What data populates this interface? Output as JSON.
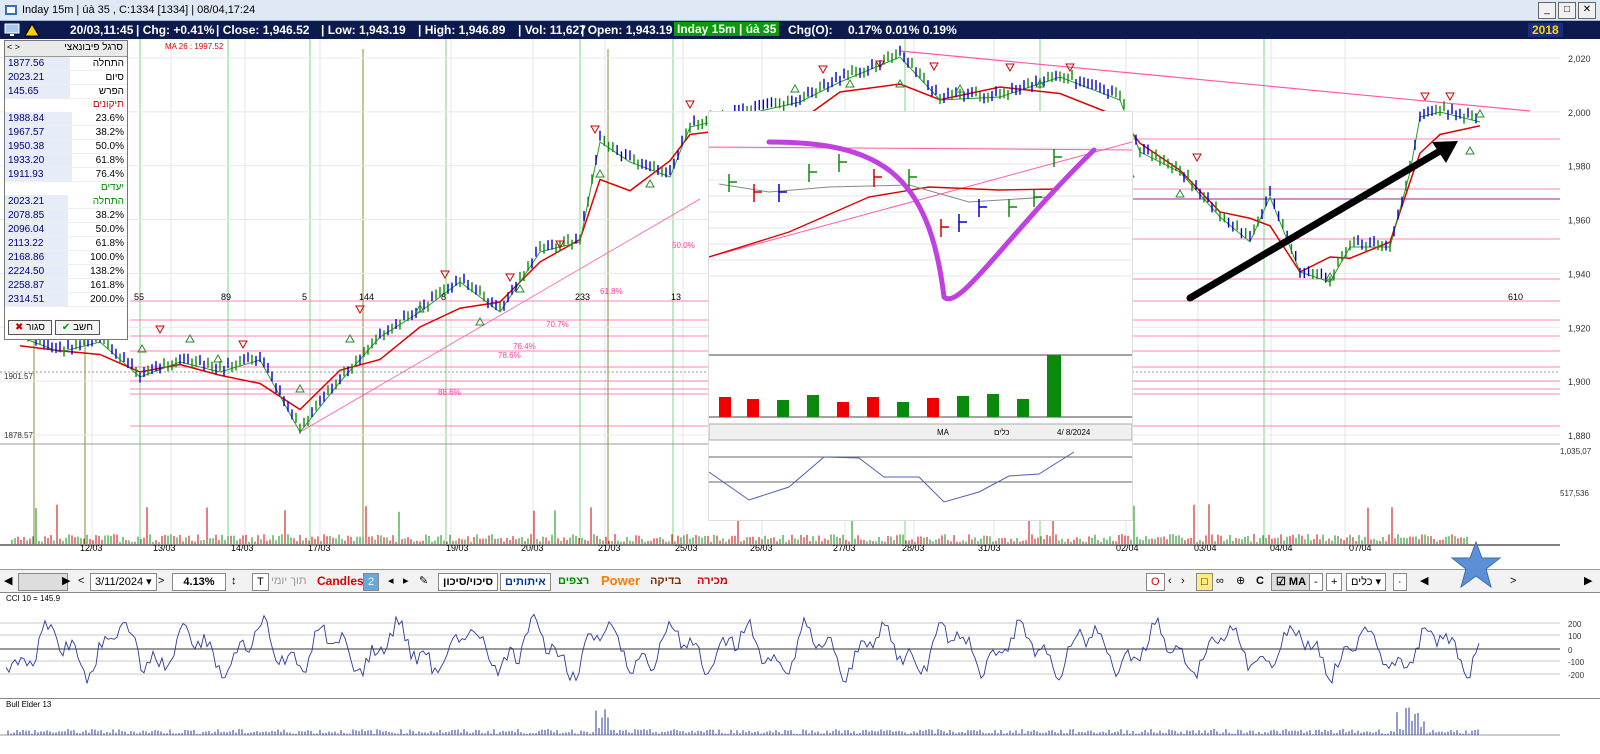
{
  "window": {
    "title": "Inday 15m | úà 35 , C:1334  [1334]  |  08/04,17:24"
  },
  "infobar": {
    "datetime": "20/03,11:45",
    "chg": "| Chg: +0.41%",
    "close": "| Close: 1,946.52",
    "low": "| Low: 1,943.19",
    "high": "| High: 1,946.89",
    "vol": "| Vol: 11,627",
    "open": "| Open: 1,943.19",
    "badge": "Inday 15m | úà 35",
    "chg_o": "Chg(O):",
    "pcts": "0.17%  0.01%  0.19%",
    "year": "2018"
  },
  "fib_panel": {
    "title": "סרגל פיבונאצי",
    "rows_top": [
      {
        "value": "1877.56",
        "label": "התחלה"
      },
      {
        "value": "2023.21",
        "label": "סיום"
      },
      {
        "value": "145.65",
        "label": "הפרש"
      }
    ],
    "section_corrections": "תיקונים",
    "corrections": [
      {
        "value": "1988.84",
        "label": "23.6%"
      },
      {
        "value": "1967.57",
        "label": "38.2%"
      },
      {
        "value": "1950.38",
        "label": "50.0%"
      },
      {
        "value": "1933.20",
        "label": "61.8%"
      },
      {
        "value": "1911.93",
        "label": "76.4%"
      }
    ],
    "section_targets": "יעדים",
    "target_head": {
      "value": "2023.21",
      "label": "התחלה"
    },
    "targets": [
      {
        "value": "2078.85",
        "label": "38.2%"
      },
      {
        "value": "2096.04",
        "label": "50.0%"
      },
      {
        "value": "2113.22",
        "label": "61.8%"
      },
      {
        "value": "2168.86",
        "label": "100.0%"
      },
      {
        "value": "2224.50",
        "label": "138.2%"
      },
      {
        "value": "2258.87",
        "label": "161.8%"
      },
      {
        "value": "2314.51",
        "label": "200.0%"
      }
    ],
    "close_btn": "סגור",
    "calc_btn": "חשב"
  },
  "price_axis": [
    "2,020",
    "2,000",
    "1,980",
    "1,960",
    "1,940",
    "1,920",
    "1,900",
    "1,880"
  ],
  "volume_axis": [
    "1,035,07",
    "517,536"
  ],
  "ma_label": "MA 26 : 1997.52",
  "left_prices": [
    "1901.57",
    "1878.57"
  ],
  "fib_counts": [
    "55",
    "89",
    "5",
    "144",
    "8",
    "233",
    "13",
    "610"
  ],
  "fib_pcts": [
    "61.8%",
    "50.0%",
    "70.7%",
    "76.4%",
    "78.6%",
    "88.6%"
  ],
  "date_axis": [
    "12/03",
    "13/03",
    "14/03",
    "17/03",
    "19/03",
    "20/03",
    "21/03",
    "25/03",
    "26/03",
    "27/03",
    "28/03",
    "31/03",
    "02/04",
    "03/04",
    "04/04",
    "07/04"
  ],
  "toolbar": {
    "date": "3/11/2024",
    "pct": "4.13%",
    "t": "T",
    "intraday": "תוך יומי",
    "candles": "Candles",
    "candles_n": "2",
    "entry_exit": "סיכוי/סיכון",
    "signals": "איתותים",
    "sequences": "רצפים",
    "power": "Power",
    "check": "בדיקה",
    "sale": "מכירה",
    "ma": "MA",
    "all": "כלים"
  },
  "cci": {
    "label": "CCI 10 = 145.9",
    "axis": [
      "200",
      "100",
      "0",
      "-100",
      "-200"
    ]
  },
  "bull_elder": {
    "label": "Bull Elder 13"
  },
  "sticker": {
    "date": "4/ 8/2024",
    "ma": "MA",
    "tools": "כלים"
  },
  "colors": {
    "infobar_bg": "#0c1a4e",
    "up": "#0a8a0a",
    "down": "#0000cc",
    "ma_red": "#e00000",
    "fib_line": "#ff3c9a",
    "annotation_purple": "#c040e0"
  }
}
